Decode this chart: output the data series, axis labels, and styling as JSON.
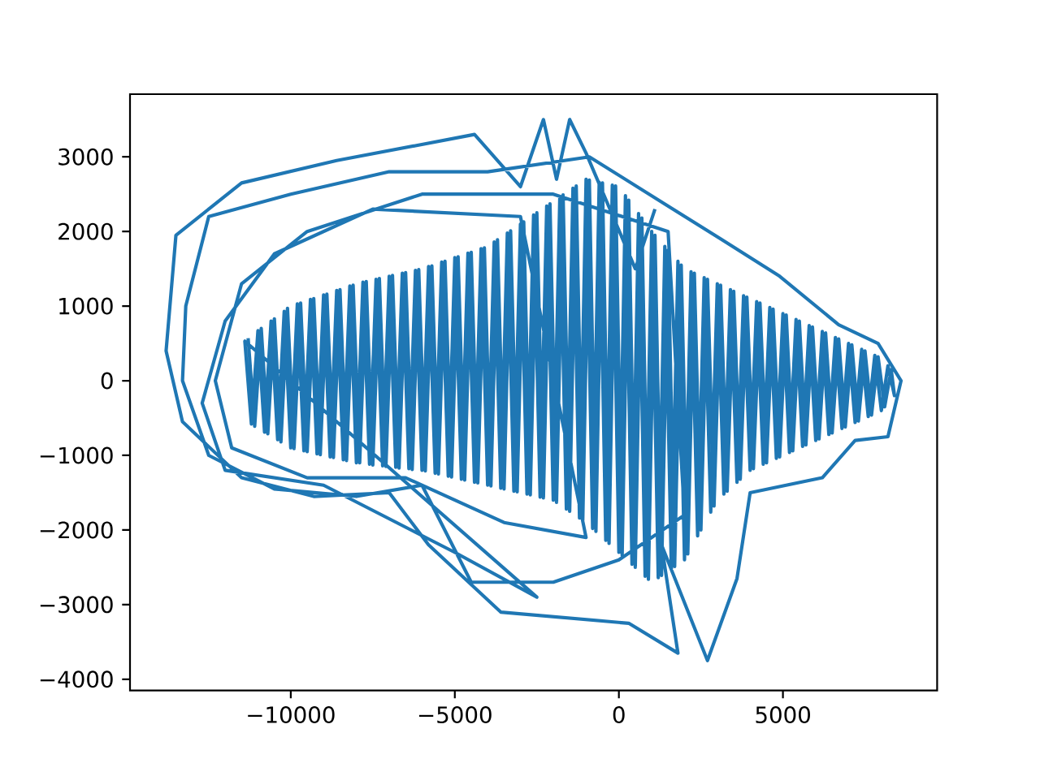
{
  "chart_data": {
    "type": "line",
    "line_style": "solid",
    "x": [
      1100,
      500,
      -1000,
      -1500,
      -1900,
      -2300,
      -3000,
      -4400,
      -6200,
      -8600,
      -11500,
      -13500,
      -13800,
      -13300,
      -11500,
      -9300,
      -7000,
      -5800,
      -3600,
      300,
      1800,
      1300,
      2700,
      3600,
      4000,
      6200,
      7200,
      8200,
      8600,
      7900,
      6700,
      4900,
      3100,
      -900,
      -4000,
      -7000,
      -10000,
      -12500,
      -13200,
      -13300,
      -12500,
      -10500,
      -8000,
      -6000,
      -4500,
      -2000,
      0,
      2000,
      1500,
      -2000,
      -6000,
      -9500,
      -11500,
      -12300,
      -11800,
      -9500,
      -6500,
      -3500,
      -1000,
      -3000,
      -7500,
      -10500,
      -12000,
      -12700,
      -12000,
      -9000,
      -5000,
      -2500,
      -11400,
      -11200,
      -11000,
      -10800,
      -10600,
      -10400,
      -10200,
      -10000,
      -9800,
      -9600,
      -9400,
      -9200,
      -9000,
      -8800,
      -8600,
      -8400,
      -8200,
      -8000,
      -7800,
      -7600,
      -7400,
      -7200,
      -7000,
      -6800,
      -6600,
      -6400,
      -6200,
      -6000,
      -5800,
      -5600,
      -5400,
      -5200,
      -5000,
      -4800,
      -4600,
      -4400,
      -4200,
      -4000,
      -3800,
      -3600,
      -3400,
      -3200,
      -3000,
      -2800,
      -2600,
      -2400,
      -2200,
      -2000,
      -1800,
      -1600,
      -1400,
      -1200,
      -1000,
      -800,
      -600,
      -400,
      -200,
      0,
      200,
      400,
      600,
      800,
      1000,
      1200,
      1400,
      1600,
      1800,
      2000,
      2200,
      2400,
      2600,
      2800,
      3000,
      3200,
      3400,
      3600,
      3800,
      4000,
      4200,
      4400,
      4600,
      4800,
      5000,
      5200,
      5400,
      5600,
      5800,
      6000,
      6200,
      6400,
      6600,
      6800,
      7000,
      7200,
      7400,
      7600,
      7800,
      8000,
      8200,
      8400,
      8300,
      8100,
      7900,
      7700,
      7500,
      7300,
      7100,
      6900,
      6700,
      6500,
      6300,
      6100,
      5900,
      5700,
      5500,
      5300,
      5100,
      4900,
      4700,
      4500,
      4300,
      4100,
      3900,
      3700,
      3500,
      3300,
      3100,
      2900,
      2700,
      2500,
      2300,
      2100,
      1900,
      1700,
      1500,
      1300,
      1100,
      900,
      700,
      500,
      300,
      100,
      -100,
      -300,
      -500,
      -700,
      -900,
      -1100,
      -1300,
      -1500,
      -1700,
      -1900,
      -2100,
      -2300,
      -2500,
      -2700,
      -2900,
      -3100,
      -3300,
      -3500,
      -3700,
      -3900,
      -4100,
      -4300,
      -4500,
      -4700,
      -4900,
      -5100,
      -5300,
      -5500,
      -5700,
      -5900,
      -6100,
      -6300,
      -6500,
      -6700,
      -6900,
      -7100,
      -7300,
      -7500,
      -7700,
      -7900,
      -8100,
      -8300,
      -8500,
      -8700,
      -8900,
      -9100,
      -9300,
      -9500,
      -9700,
      -9900,
      -10100,
      -10300,
      -10500,
      -10700,
      -10900,
      -11100,
      -11300
    ],
    "series": [
      {
        "color": "#1f77b4",
        "values": [
          2300,
          1500,
          3050,
          3500,
          2700,
          3500,
          2600,
          3300,
          3150,
          2950,
          2650,
          1950,
          400,
          -550,
          -1300,
          -1550,
          -1500,
          -2200,
          -3100,
          -3250,
          -3650,
          -2200,
          -3750,
          -2650,
          -1500,
          -1300,
          -800,
          -750,
          0,
          500,
          750,
          1400,
          1900,
          3000,
          2800,
          2800,
          2500,
          2200,
          1000,
          0,
          -1000,
          -1450,
          -1550,
          -1400,
          -2700,
          -2700,
          -2400,
          -1800,
          2000,
          2500,
          2500,
          2000,
          1300,
          0,
          -900,
          -1300,
          -1300,
          -1900,
          -2100,
          2200,
          2300,
          1700,
          800,
          -300,
          -1200,
          -1400,
          -2300,
          -2900,
          530,
          -580,
          670,
          -690,
          800,
          -790,
          930,
          -900,
          1030,
          -940,
          1090,
          -980,
          1150,
          -1020,
          1210,
          -1060,
          1270,
          -1100,
          1320,
          -1120,
          1360,
          -1140,
          1400,
          -1160,
          1440,
          -1180,
          1480,
          -1200,
          1530,
          -1240,
          1590,
          -1280,
          1650,
          -1320,
          1710,
          -1360,
          1770,
          -1400,
          1860,
          -1440,
          1980,
          -1480,
          2100,
          -1520,
          2220,
          -1560,
          2340,
          -1600,
          2460,
          -1720,
          2580,
          -1840,
          2700,
          -1980,
          2660,
          -2140,
          2620,
          -2300,
          2480,
          -2460,
          2240,
          -2620,
          2000,
          -2640,
          1800,
          -2520,
          1600,
          -2400,
          1460,
          -2080,
          1380,
          -1760,
          1300,
          -1520,
          1220,
          -1360,
          1140,
          -1200,
          1060,
          -1120,
          980,
          -1040,
          900,
          -960,
          820,
          -880,
          740,
          -800,
          660,
          -720,
          580,
          -640,
          500,
          -560,
          420,
          -480,
          340,
          -400,
          200,
          -200,
          150,
          -350,
          320,
          -460,
          400,
          -540,
          480,
          -620,
          560,
          -700,
          640,
          -780,
          720,
          -860,
          800,
          -940,
          880,
          -1020,
          960,
          -1100,
          1040,
          -1180,
          1120,
          -1320,
          1200,
          -1480,
          1280,
          -1680,
          1360,
          -2000,
          1440,
          -2320,
          1550,
          -2490,
          1750,
          -2610,
          1950,
          -2660,
          2180,
          -2500,
          2420,
          -2340,
          2610,
          -2180,
          2650,
          -2020,
          2690,
          -1870,
          2610,
          -1750,
          2490,
          -1630,
          2370,
          -1570,
          2250,
          -1530,
          2130,
          -1490,
          2010,
          -1450,
          1890,
          -1410,
          1780,
          -1370,
          1720,
          -1330,
          1660,
          -1290,
          1600,
          -1250,
          1540,
          -1210,
          1490,
          -1190,
          1450,
          -1170,
          1410,
          -1150,
          1370,
          -1130,
          1330,
          -1100,
          1280,
          -1070,
          1220,
          -1030,
          1160,
          -990,
          1100,
          -950,
          1040,
          -910,
          970,
          -820,
          830,
          -710,
          700,
          -610,
          570
        ]
      }
    ],
    "xlim": [
      -14900,
      9700
    ],
    "ylim": [
      -4150,
      3840
    ],
    "xticks": [
      {
        "value": -10000,
        "label": "−10000"
      },
      {
        "value": -5000,
        "label": "−5000"
      },
      0,
      5000
    ],
    "yticks": [
      {
        "value": -4000,
        "label": "−4000"
      },
      {
        "value": -3000,
        "label": "−3000"
      },
      {
        "value": -2000,
        "label": "−2000"
      },
      {
        "value": -1000,
        "label": "−1000"
      },
      0,
      1000,
      2000,
      3000
    ]
  }
}
